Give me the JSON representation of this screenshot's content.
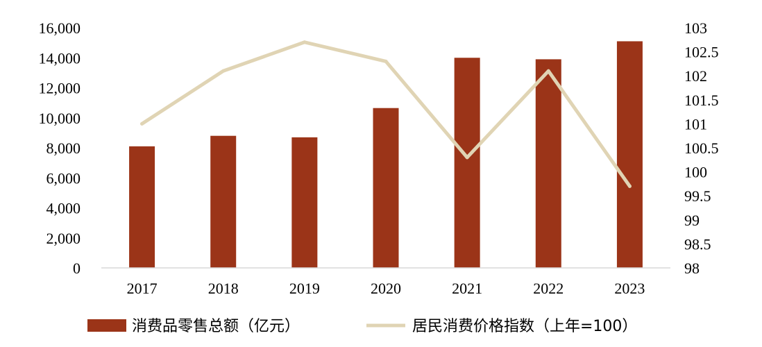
{
  "chart_data": {
    "type": "bar",
    "categories": [
      "2017",
      "2018",
      "2019",
      "2020",
      "2021",
      "2022",
      "2023"
    ],
    "series": [
      {
        "name": "消费品零售总额（亿元）",
        "type": "bar",
        "axis": "left",
        "color": "#9B3418",
        "values": [
          8100,
          8800,
          8700,
          10650,
          14000,
          13900,
          15100
        ]
      },
      {
        "name": "居民消费价格指数（上年=100）",
        "type": "line",
        "axis": "right",
        "color": "#E0D4B4",
        "values": [
          101.0,
          102.1,
          102.7,
          102.3,
          100.3,
          102.1,
          99.7
        ]
      }
    ],
    "y_left": {
      "ylim": [
        0,
        16000
      ],
      "ticks": [
        "0",
        "2,000",
        "4,000",
        "6,000",
        "8,000",
        "10,000",
        "12,000",
        "14,000",
        "16,000"
      ]
    },
    "y_right": {
      "ylim": [
        98,
        103
      ],
      "ticks": [
        "98",
        "98.5",
        "99",
        "99.5",
        "100",
        "100.5",
        "101",
        "101.5",
        "102",
        "102.5",
        "103"
      ]
    },
    "grid": false,
    "legend": "bottom"
  }
}
